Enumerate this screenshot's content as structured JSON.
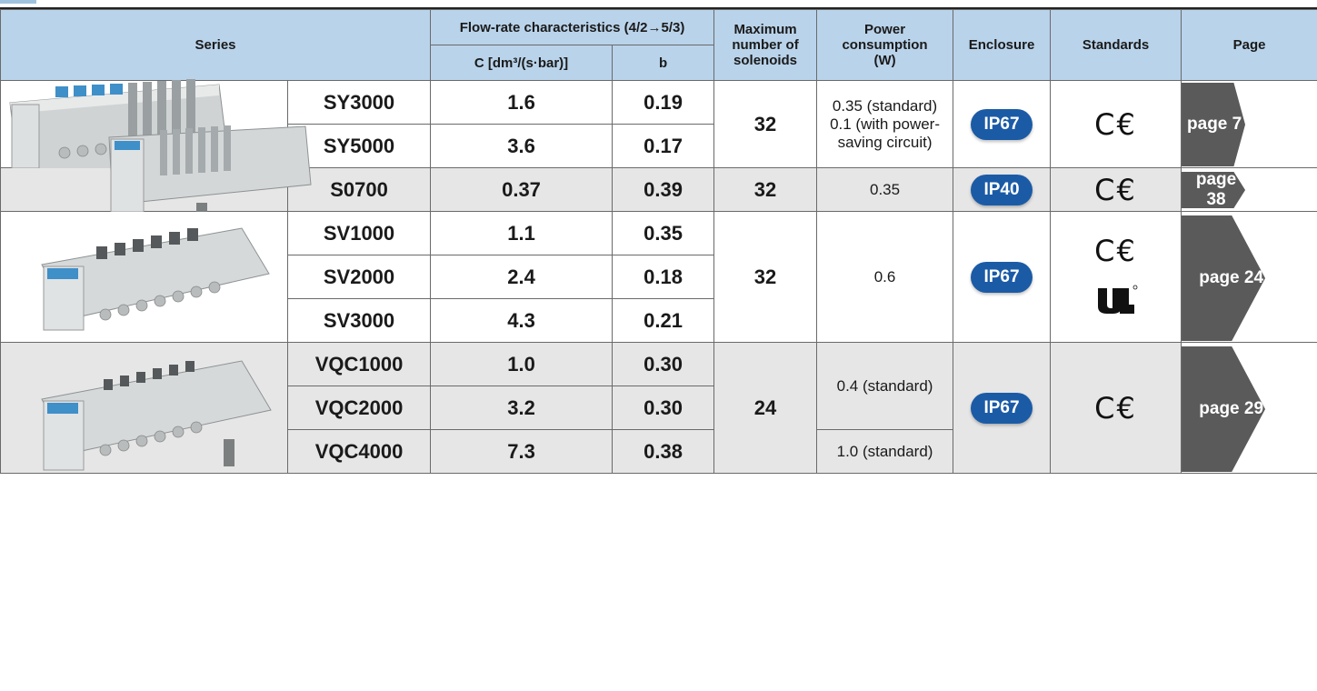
{
  "header": {
    "series": "Series",
    "flow_rate": "Flow-rate characteristics (4/2→5/3)",
    "c_value": "C [dm³/(s·bar)]",
    "b_value": "b",
    "max_solenoids": "Maximum number of solenoids",
    "power": "Power consumption (W)",
    "enclosure": "Enclosure",
    "standards": "Standards",
    "page": "Page"
  },
  "groups": [
    {
      "rows": [
        {
          "model": "SY3000",
          "c": "1.6",
          "b": "0.19"
        },
        {
          "model": "SY5000",
          "c": "3.6",
          "b": "0.17"
        }
      ],
      "max_solenoids": "32",
      "power_lines": [
        "0.35 (standard)",
        "0.1 (with power-",
        "saving circuit)"
      ],
      "enclosure": "IP67",
      "standards": [
        "C€"
      ],
      "page": "page 7"
    },
    {
      "rows": [
        {
          "model": "S0700",
          "c": "0.37",
          "b": "0.39"
        }
      ],
      "max_solenoids": "32",
      "power_lines": [
        "0.35"
      ],
      "enclosure": "IP40",
      "standards": [
        "C€"
      ],
      "page": "page 38"
    },
    {
      "rows": [
        {
          "model": "SV1000",
          "c": "1.1",
          "b": "0.35"
        },
        {
          "model": "SV2000",
          "c": "2.4",
          "b": "0.18"
        },
        {
          "model": "SV3000",
          "c": "4.3",
          "b": "0.21"
        }
      ],
      "max_solenoids": "32",
      "power_lines": [
        "0.6"
      ],
      "enclosure": "IP67",
      "standards": [
        "C€",
        "UL"
      ],
      "page": "page 24"
    },
    {
      "rows": [
        {
          "model": "VQC1000",
          "c": "1.0",
          "b": "0.30"
        },
        {
          "model": "VQC2000",
          "c": "3.2",
          "b": "0.30"
        },
        {
          "model": "VQC4000",
          "c": "7.3",
          "b": "0.38"
        }
      ],
      "max_solenoids": "24",
      "power_lines_a": [
        "0.4 (standard)"
      ],
      "power_lines_b": [
        "1.0 (standard)"
      ],
      "enclosure": "IP67",
      "standards": [
        "C€"
      ],
      "page": "page 29"
    }
  ],
  "colors": {
    "header_bg": "#b9d3ea",
    "grey_row": "#e6e6e6",
    "badge_blue": "#1b5ba6",
    "page_arrow": "#5a5a5a"
  }
}
